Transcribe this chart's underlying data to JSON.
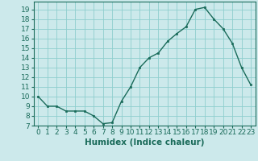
{
  "x": [
    0,
    1,
    2,
    3,
    4,
    5,
    6,
    7,
    8,
    9,
    10,
    11,
    12,
    13,
    14,
    15,
    16,
    17,
    18,
    19,
    20,
    21,
    22,
    23
  ],
  "y": [
    10,
    9,
    9,
    8.5,
    8.5,
    8.5,
    8,
    7.2,
    7.3,
    9.5,
    11,
    13,
    14,
    14.5,
    15.7,
    16.5,
    17.2,
    19,
    19.2,
    18,
    17,
    15.5,
    13,
    11.2
  ],
  "line_color": "#1a6b5a",
  "marker_color": "#1a6b5a",
  "bg_color": "#cce9eb",
  "grid_color": "#8ecece",
  "xlabel": "Humidex (Indice chaleur)",
  "ylim": [
    7,
    19.8
  ],
  "xlim": [
    -0.5,
    23.5
  ],
  "yticks": [
    7,
    8,
    9,
    10,
    11,
    12,
    13,
    14,
    15,
    16,
    17,
    18,
    19
  ],
  "xticks": [
    0,
    1,
    2,
    3,
    4,
    5,
    6,
    7,
    8,
    9,
    10,
    11,
    12,
    13,
    14,
    15,
    16,
    17,
    18,
    19,
    20,
    21,
    22,
    23
  ],
  "xlabel_fontsize": 7.5,
  "tick_fontsize": 6.5
}
